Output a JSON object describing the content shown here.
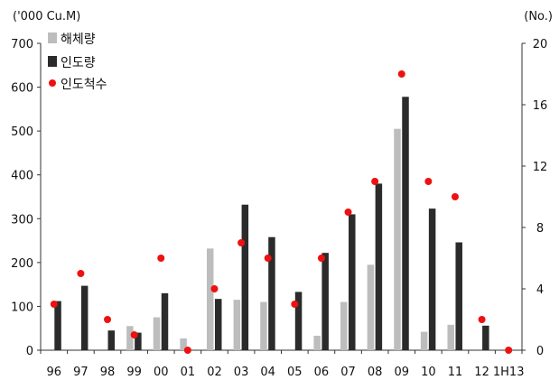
{
  "chart_data": {
    "type": "bar",
    "units": {
      "left": "('000 Cu.M)",
      "right": "(No.)"
    },
    "categories": [
      "96",
      "97",
      "98",
      "99",
      "00",
      "01",
      "02",
      "03",
      "04",
      "05",
      "06",
      "07",
      "08",
      "09",
      "10",
      "11",
      "12",
      "1H13"
    ],
    "left_axis": {
      "ylim": [
        0,
        700
      ],
      "ticks": [
        0,
        100,
        200,
        300,
        400,
        500,
        600,
        700
      ]
    },
    "right_axis": {
      "ylim": [
        0,
        20
      ],
      "ticks": [
        0,
        4,
        8,
        12,
        16,
        20
      ]
    },
    "series": [
      {
        "name": "해체량",
        "kind": "bar",
        "axis": "left",
        "color": "#bdbdbd",
        "values": [
          0,
          0,
          0,
          55,
          75,
          27,
          232,
          115,
          110,
          0,
          33,
          110,
          195,
          505,
          42,
          58,
          0,
          0
        ]
      },
      {
        "name": "인도량",
        "kind": "bar",
        "axis": "left",
        "color": "#2b2b2b",
        "values": [
          112,
          147,
          45,
          40,
          130,
          0,
          117,
          332,
          258,
          133,
          222,
          310,
          380,
          578,
          323,
          246,
          56,
          0
        ]
      },
      {
        "name": "인도척수",
        "kind": "dot",
        "axis": "right",
        "color": "#ee1111",
        "values": [
          3,
          5,
          2,
          1,
          6,
          0,
          4,
          7,
          6,
          3,
          6,
          9,
          11,
          18,
          11,
          10,
          2,
          0
        ]
      }
    ],
    "legend_position": "top-left",
    "grid": false
  }
}
